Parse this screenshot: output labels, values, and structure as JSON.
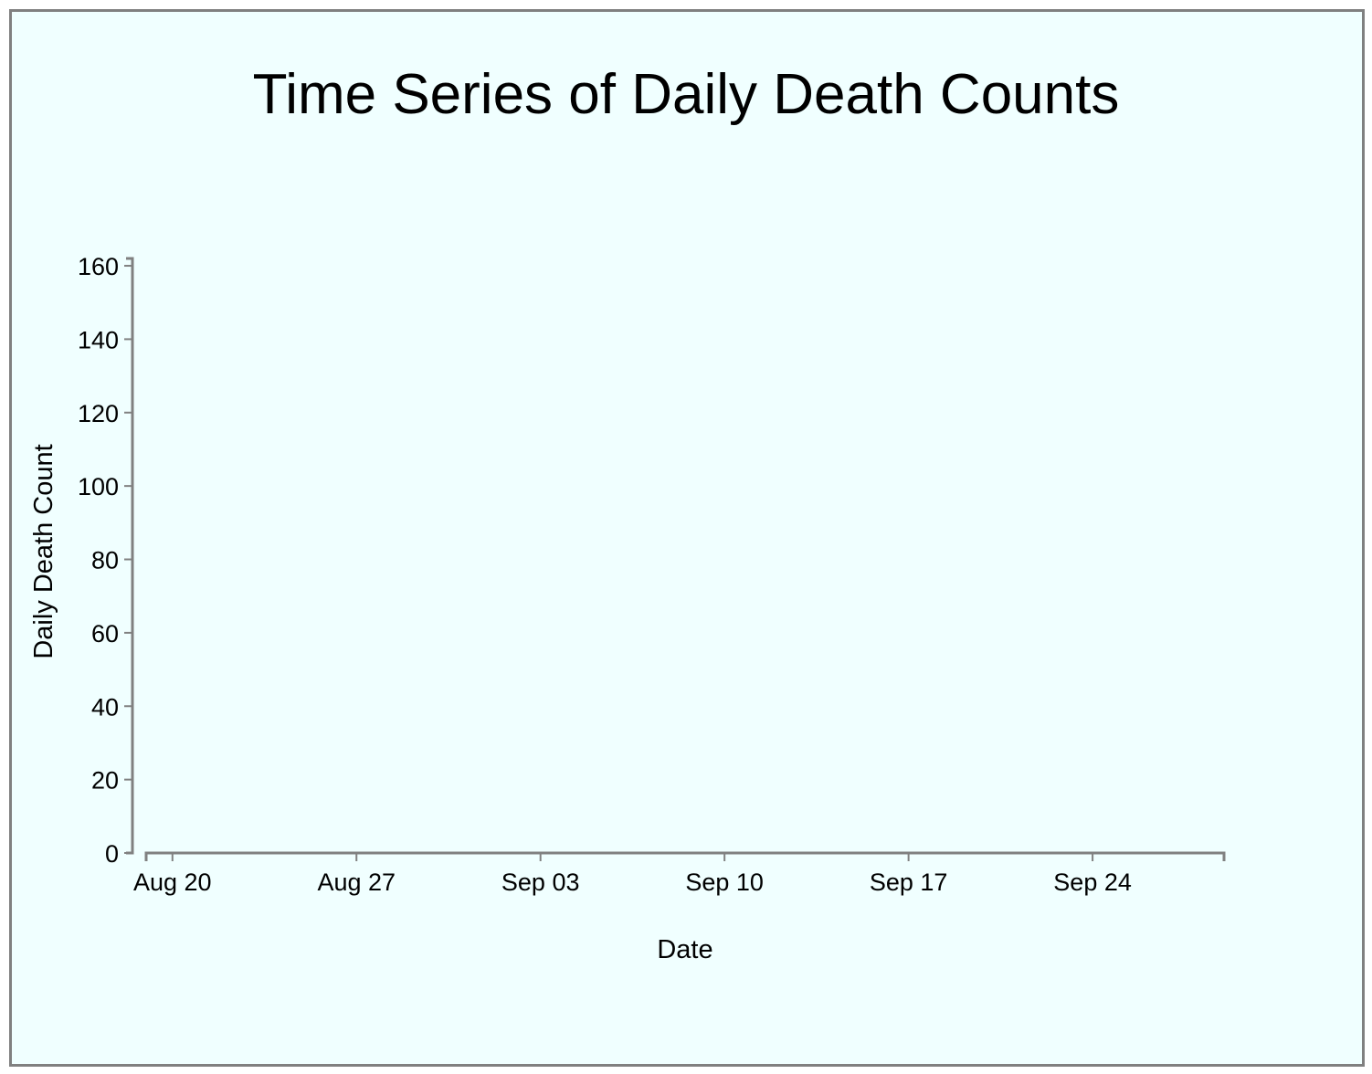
{
  "chart_data": {
    "type": "line",
    "title": "Time Series of Daily Death Counts",
    "xlabel": "Date",
    "ylabel": "Daily Death Count",
    "x_ticks": [
      "Aug 20",
      "Aug 27",
      "Sep 03",
      "Sep 10",
      "Sep 17",
      "Sep 24"
    ],
    "x_tick_dates": [
      "2023-08-20",
      "2023-08-27",
      "2023-09-03",
      "2023-09-10",
      "2023-09-17",
      "2023-09-24"
    ],
    "xlim": [
      "2023-08-19",
      "2023-09-29"
    ],
    "y_ticks": [
      0,
      20,
      40,
      60,
      80,
      100,
      120,
      140,
      160
    ],
    "ylim": [
      0,
      162
    ],
    "grid": false,
    "series": []
  },
  "colors": {
    "background": "#f0ffff",
    "axis": "#808080",
    "frame": "#808080"
  }
}
